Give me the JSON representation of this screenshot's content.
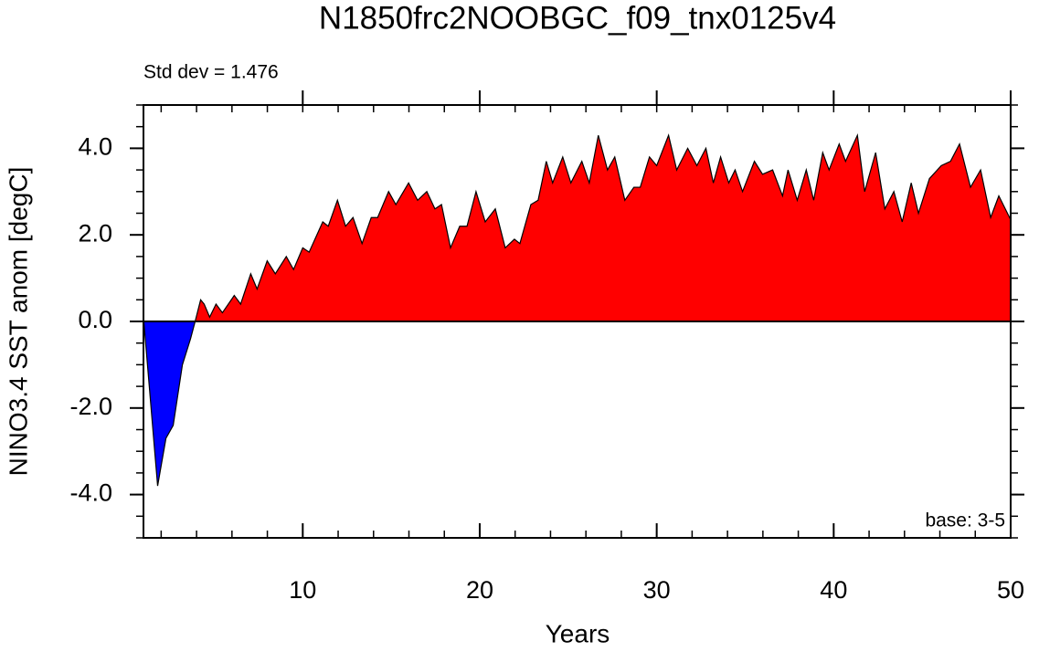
{
  "chart_data": {
    "type": "area",
    "title": "N1850frc2NOOBGC_f09_tnx0125v4",
    "annotations": [
      "Std dev = 1.476",
      "base: 3-5"
    ],
    "xlabel": "Years",
    "ylabel": "NINO3.4 SST anom [degC]",
    "x": [
      1.0,
      1.8,
      2.27,
      2.68,
      3.2,
      3.66,
      3.92,
      4.23,
      4.43,
      4.74,
      5.1,
      5.46,
      6.13,
      6.49,
      7.06,
      7.42,
      7.99,
      8.45,
      9.07,
      9.48,
      10.0,
      10.36,
      11.13,
      11.44,
      11.96,
      12.42,
      12.84,
      13.35,
      13.87,
      14.23,
      14.85,
      15.26,
      15.98,
      16.49,
      17.01,
      17.47,
      17.84,
      18.35,
      18.87,
      19.28,
      19.79,
      20.31,
      20.88,
      21.44,
      21.96,
      22.27,
      22.89,
      23.3,
      23.76,
      24.12,
      24.69,
      25.15,
      25.77,
      26.19,
      26.7,
      27.22,
      27.63,
      28.2,
      28.71,
      29.07,
      29.59,
      30.0,
      30.67,
      31.13,
      31.75,
      32.27,
      32.78,
      33.2,
      33.61,
      34.07,
      34.43,
      34.85,
      35.52,
      35.98,
      36.55,
      37.11,
      37.42,
      37.94,
      38.45,
      38.87,
      39.38,
      39.74,
      40.31,
      40.67,
      41.34,
      41.75,
      42.37,
      42.89,
      43.4,
      43.87,
      44.38,
      44.79,
      45.41,
      46.08,
      46.6,
      47.11,
      47.73,
      48.3,
      48.87,
      49.33,
      50.0
    ],
    "values": [
      0.1,
      -3.8,
      -2.7,
      -2.4,
      -1.0,
      -0.4,
      0.0,
      0.5,
      0.4,
      0.1,
      0.4,
      0.2,
      0.6,
      0.4,
      1.1,
      0.75,
      1.4,
      1.1,
      1.5,
      1.2,
      1.7,
      1.6,
      2.3,
      2.2,
      2.8,
      2.2,
      2.4,
      1.8,
      2.4,
      2.4,
      3.0,
      2.7,
      3.2,
      2.8,
      3.0,
      2.6,
      2.7,
      1.7,
      2.2,
      2.2,
      3.0,
      2.3,
      2.6,
      1.7,
      1.9,
      1.8,
      2.7,
      2.8,
      3.7,
      3.2,
      3.8,
      3.2,
      3.7,
      3.2,
      4.3,
      3.5,
      3.8,
      2.8,
      3.1,
      3.1,
      3.8,
      3.6,
      4.3,
      3.5,
      4.0,
      3.6,
      4.0,
      3.2,
      3.8,
      3.2,
      3.5,
      3.0,
      3.7,
      3.4,
      3.5,
      2.9,
      3.5,
      2.8,
      3.5,
      2.8,
      3.9,
      3.5,
      4.1,
      3.7,
      4.3,
      3.0,
      3.9,
      2.6,
      3.0,
      2.3,
      3.2,
      2.5,
      3.3,
      3.6,
      3.7,
      4.1,
      3.1,
      3.5,
      2.4,
      2.9,
      2.35
    ],
    "positive_color": "#ff0000",
    "negative_color": "#0000ff",
    "xlim": [
      1,
      50
    ],
    "xticks": [
      10,
      20,
      30,
      40,
      50
    ],
    "ylim": [
      -5,
      5
    ],
    "yticks": [
      {
        "value": -4,
        "label": "-4.0"
      },
      {
        "value": -2,
        "label": "-2.0"
      },
      {
        "value": 0,
        "label": "0.0"
      },
      {
        "value": 2,
        "label": "2.0"
      },
      {
        "value": 4,
        "label": "4.0"
      }
    ]
  }
}
